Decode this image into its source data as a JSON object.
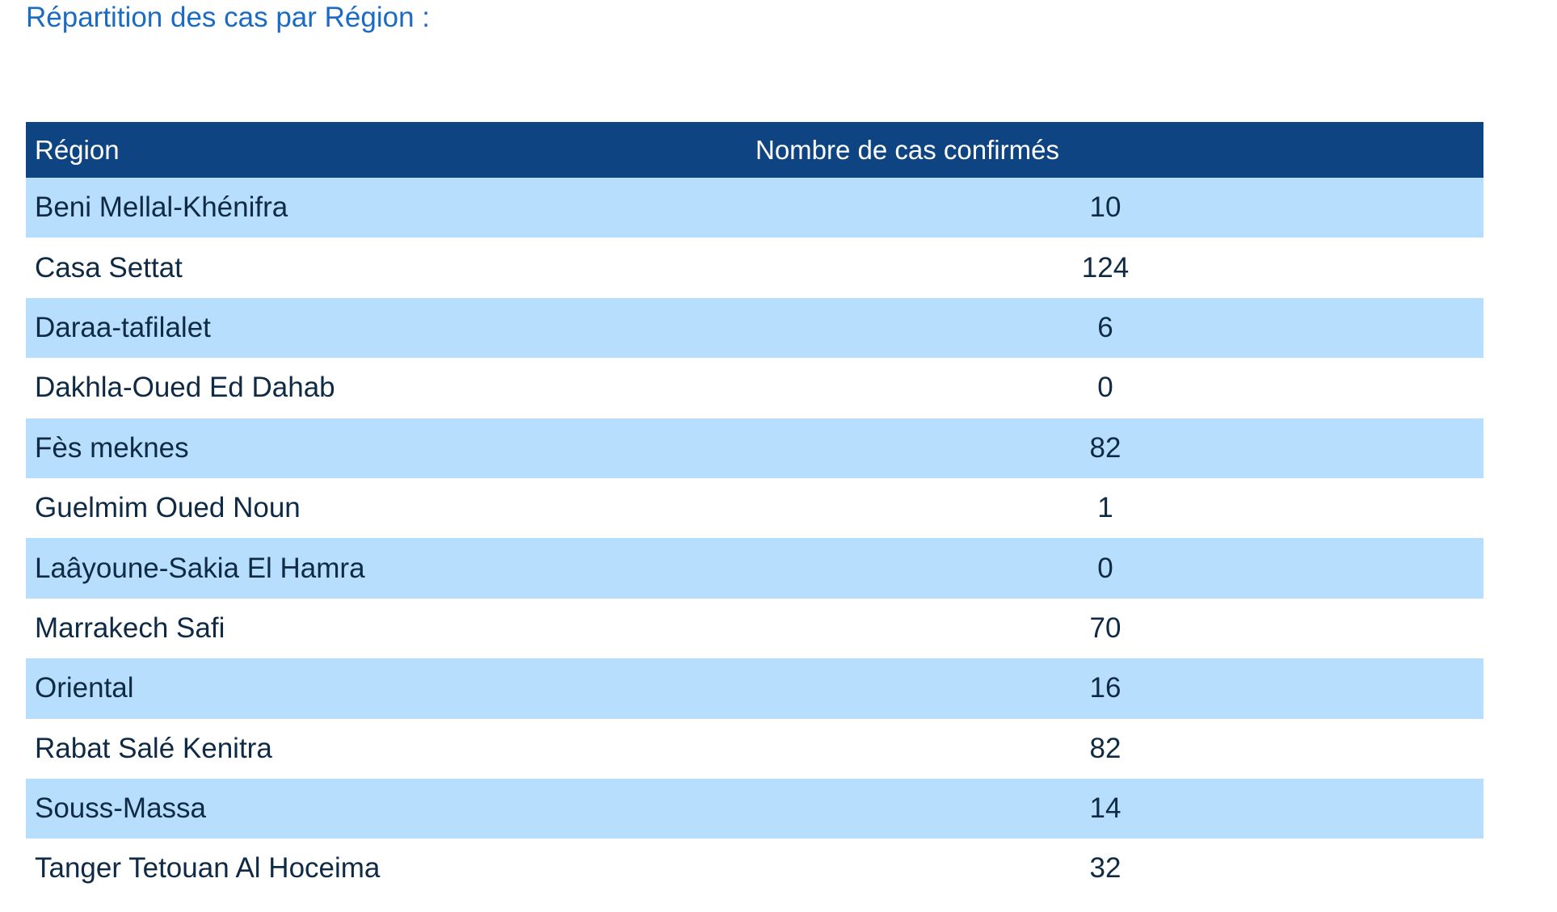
{
  "heading": "Répartition des cas par Région :",
  "table": {
    "headers": {
      "region": "Région",
      "count": "Nombre de cas confirmés"
    },
    "rows": [
      {
        "region": "Beni Mellal-Khénifra",
        "count": "10"
      },
      {
        "region": "Casa Settat",
        "count": "124"
      },
      {
        "region": "Daraa-tafilalet",
        "count": "6"
      },
      {
        "region": "Dakhla-Oued Ed Dahab",
        "count": "0"
      },
      {
        "region": "Fès meknes",
        "count": "82"
      },
      {
        "region": "Guelmim Oued Noun",
        "count": "1"
      },
      {
        "region": "Laâyoune-Sakia El Hamra",
        "count": "0"
      },
      {
        "region": "Marrakech Safi",
        "count": "70"
      },
      {
        "region": "Oriental",
        "count": "16"
      },
      {
        "region": "Rabat Salé Kenitra",
        "count": "82"
      },
      {
        "region": "Souss-Massa",
        "count": "14"
      },
      {
        "region": "Tanger Tetouan Al Hoceima",
        "count": "32"
      }
    ]
  },
  "colors": {
    "heading": "#1a6bc4",
    "header_bg": "#0e4482",
    "row_stripe": "#b8defe",
    "text": "#0f2a44"
  }
}
